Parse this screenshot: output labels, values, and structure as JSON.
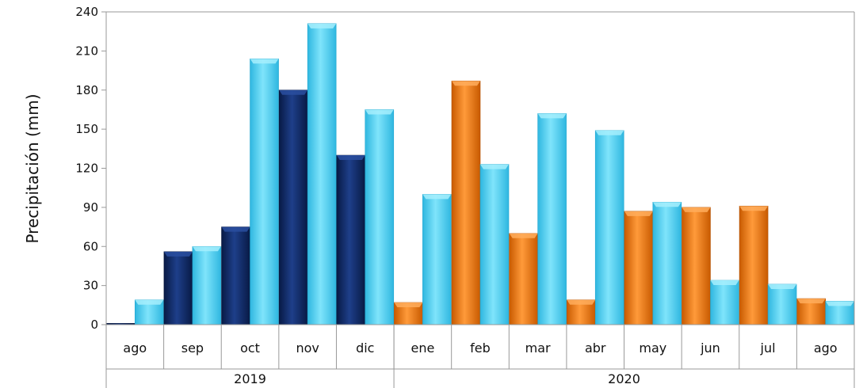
{
  "chart_data": {
    "type": "bar",
    "ylabel": "Precipitación (mm)",
    "ylim": [
      0,
      240
    ],
    "yticks": [
      0,
      30,
      60,
      90,
      120,
      150,
      180,
      210,
      240
    ],
    "grid": false,
    "legend": "none",
    "groups": [
      {
        "label": "2019",
        "categories": [
          "ago",
          "sep",
          "oct",
          "nov",
          "dic"
        ]
      },
      {
        "label": "2020",
        "categories": [
          "ene",
          "feb",
          "mar",
          "abr",
          "may",
          "jun",
          "jul",
          "ago"
        ]
      }
    ],
    "categories": [
      "ago",
      "sep",
      "oct",
      "nov",
      "dic",
      "ene",
      "feb",
      "mar",
      "abr",
      "may",
      "jun",
      "jul",
      "ago"
    ],
    "series": [
      {
        "values": [
          1,
          56,
          75,
          180,
          130,
          17,
          187,
          70,
          19,
          87,
          90,
          91,
          20
        ]
      },
      {
        "values": [
          19,
          60,
          204,
          231,
          165,
          100,
          123,
          162,
          149,
          94,
          34,
          31,
          18
        ]
      }
    ],
    "colors": {
      "dark_blue": "#0f2a66",
      "orange": "#f07a12",
      "light_blue": "#4fcff2",
      "axis": "#999999"
    }
  }
}
